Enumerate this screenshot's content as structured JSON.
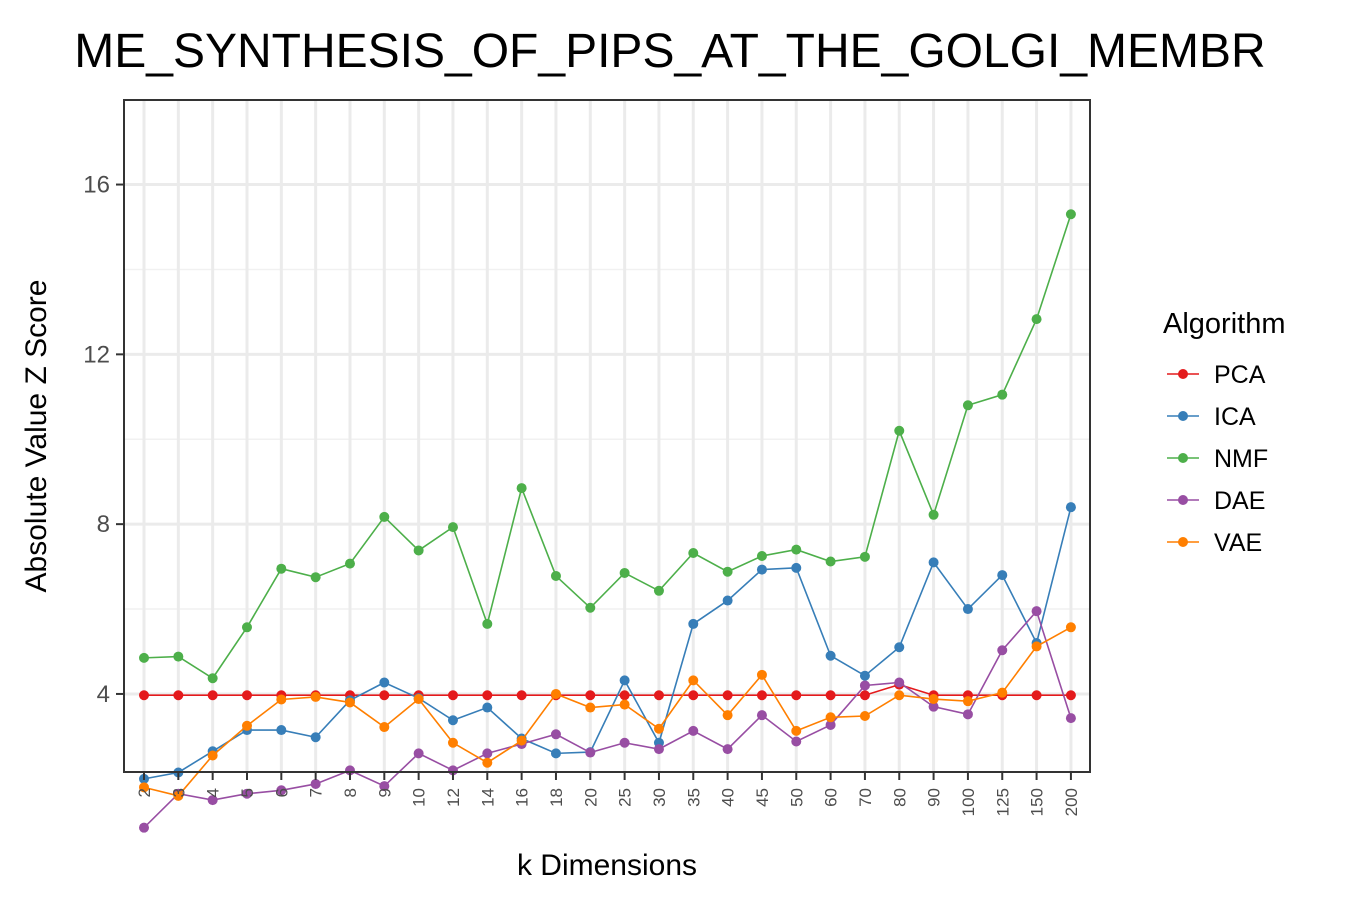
{
  "chart_data": {
    "type": "line",
    "title": "ME_SYNTHESIS_OF_PIPS_AT_THE_GOLGI_MEMBR",
    "xlabel": "k Dimensions",
    "ylabel": "Absolute Value Z Score",
    "categories": [
      "2",
      "3",
      "4",
      "5",
      "6",
      "7",
      "8",
      "9",
      "10",
      "12",
      "14",
      "16",
      "18",
      "20",
      "25",
      "30",
      "35",
      "40",
      "45",
      "50",
      "60",
      "70",
      "80",
      "90",
      "100",
      "125",
      "150",
      "200"
    ],
    "ylim": [
      0,
      16
    ],
    "yticks": [
      4,
      8,
      12,
      16
    ],
    "y_tick_labels": [
      "4",
      "8",
      "12",
      "16"
    ],
    "grid": true,
    "legend": {
      "title": "Algorithm",
      "placement": "right"
    },
    "series": [
      {
        "name": "PCA",
        "color": "#E41A1C",
        "values": [
          3.97,
          3.97,
          3.97,
          3.97,
          3.97,
          3.97,
          3.97,
          3.97,
          3.97,
          3.97,
          3.97,
          3.97,
          3.97,
          3.97,
          3.97,
          3.97,
          3.97,
          3.97,
          3.97,
          3.97,
          3.97,
          3.97,
          4.22,
          3.97,
          3.97,
          3.97,
          3.97,
          3.97
        ]
      },
      {
        "name": "ICA",
        "color": "#377EB8",
        "values": [
          2.0,
          2.15,
          2.65,
          3.15,
          3.15,
          2.98,
          3.85,
          4.27,
          3.9,
          3.38,
          3.68,
          2.95,
          2.6,
          2.63,
          4.32,
          2.85,
          5.65,
          6.2,
          6.93,
          6.97,
          4.9,
          4.43,
          5.1,
          7.1,
          6.0,
          6.8,
          5.2,
          8.4
        ]
      },
      {
        "name": "NMF",
        "color": "#4DAF4A",
        "values": [
          4.85,
          4.88,
          4.37,
          5.57,
          6.95,
          6.75,
          7.07,
          8.17,
          7.38,
          7.93,
          5.65,
          8.85,
          6.78,
          6.03,
          6.85,
          6.43,
          7.32,
          6.88,
          7.25,
          7.4,
          7.12,
          7.23,
          10.2,
          8.22,
          10.8,
          11.05,
          12.83,
          15.3
        ]
      },
      {
        "name": "DAE",
        "color": "#984EA3",
        "values": [
          0.85,
          1.65,
          1.5,
          1.65,
          1.73,
          1.88,
          2.2,
          1.83,
          2.6,
          2.2,
          2.6,
          2.82,
          3.05,
          2.62,
          2.85,
          2.7,
          3.13,
          2.7,
          3.5,
          2.88,
          3.27,
          4.2,
          4.27,
          3.7,
          3.52,
          5.03,
          5.95,
          3.43
        ]
      },
      {
        "name": "VAE",
        "color": "#FF7F00",
        "values": [
          1.8,
          1.6,
          2.55,
          3.25,
          3.87,
          3.93,
          3.8,
          3.22,
          3.88,
          2.85,
          2.38,
          2.9,
          4.0,
          3.68,
          3.75,
          3.18,
          4.32,
          3.5,
          4.45,
          3.13,
          3.45,
          3.48,
          3.97,
          3.88,
          3.83,
          4.03,
          5.12,
          5.57
        ]
      }
    ]
  }
}
